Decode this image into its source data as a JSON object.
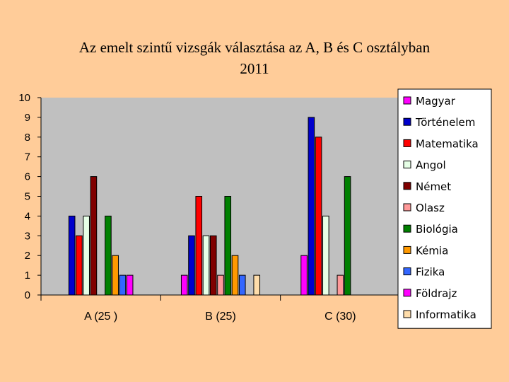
{
  "chart_data": {
    "type": "bar",
    "title": "Az emelt szintű vizsgák választása az A, B és C osztályban",
    "subtitle": "2011",
    "categories": [
      "A (25 )",
      "B (25)",
      "C (30)"
    ],
    "ylim": [
      0,
      10
    ],
    "yticks": [
      "0",
      "1",
      "2",
      "3",
      "4",
      "5",
      "6",
      "7",
      "8",
      "9",
      "10"
    ],
    "grid": false,
    "legend_position": "right",
    "series": [
      {
        "name": "Magyar",
        "color": "#FF00FF",
        "values": [
          0,
          1,
          2
        ]
      },
      {
        "name": "Történelem",
        "color": "#0000CC",
        "values": [
          4,
          3,
          9
        ]
      },
      {
        "name": "Matematika",
        "color": "#FF0000",
        "values": [
          3,
          5,
          8
        ]
      },
      {
        "name": "Angol",
        "color": "#E6FFE6",
        "values": [
          4,
          3,
          4
        ]
      },
      {
        "name": "Német",
        "color": "#800000",
        "values": [
          6,
          3,
          0
        ]
      },
      {
        "name": "Olasz",
        "color": "#FF9999",
        "values": [
          0,
          1,
          1
        ]
      },
      {
        "name": "Biológia",
        "color": "#008000",
        "values": [
          4,
          5,
          6
        ]
      },
      {
        "name": "Kémia",
        "color": "#FF9900",
        "values": [
          2,
          2,
          0
        ]
      },
      {
        "name": "Fizika",
        "color": "#3366FF",
        "values": [
          1,
          1,
          0
        ]
      },
      {
        "name": "Földrajz",
        "color": "#FF00FF",
        "values": [
          1,
          0,
          0
        ]
      },
      {
        "name": "Informatika",
        "color": "#FFDDAA",
        "values": [
          0,
          1,
          0
        ]
      }
    ],
    "colors": {
      "background": "#FFCC99",
      "plot_area": "#C0C0C0",
      "legend_background": "#FFFFFF"
    }
  }
}
